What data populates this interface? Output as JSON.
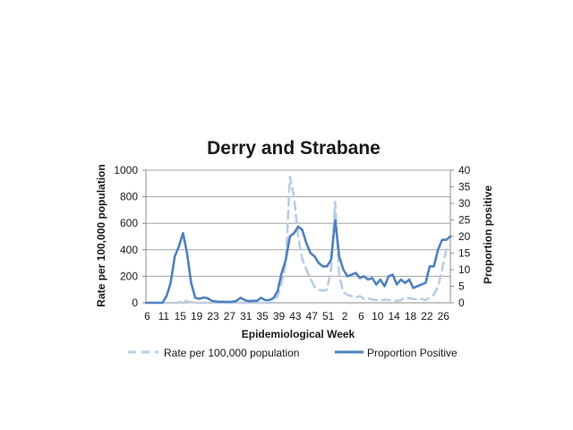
{
  "chart_data": {
    "type": "line",
    "title": "Derry and Strabane",
    "xlabel": "Epidemiological Week",
    "ylabel": "Rate per 100,000 population",
    "y2label": "Proportion positive",
    "ylim": [
      0,
      1000
    ],
    "y2lim": [
      0,
      40
    ],
    "yticks": [
      "0",
      "200",
      "400",
      "600",
      "800",
      "1000"
    ],
    "y2ticks": [
      "0",
      "5",
      "10",
      "15",
      "20",
      "25",
      "30",
      "35",
      "40"
    ],
    "grid": true,
    "legend": "bottom",
    "categories": [
      "6",
      "7",
      "8",
      "9",
      "10",
      "11",
      "12",
      "13",
      "14",
      "15",
      "16",
      "17",
      "18",
      "19",
      "20",
      "21",
      "22",
      "23",
      "24",
      "25",
      "26",
      "27",
      "28",
      "29",
      "30",
      "31",
      "32",
      "33",
      "34",
      "35",
      "36",
      "37",
      "38",
      "39",
      "40",
      "41",
      "42",
      "43",
      "44",
      "45",
      "46",
      "47",
      "48",
      "49",
      "50",
      "51",
      "52",
      "53",
      "1",
      "2",
      "3",
      "4",
      "5",
      "6",
      "7",
      "8",
      "9",
      "10",
      "11",
      "12",
      "13",
      "14",
      "15",
      "16",
      "17",
      "18",
      "19",
      "20",
      "21",
      "22",
      "23",
      "24",
      "25",
      "26",
      "27"
    ],
    "tick_labels": [
      "6",
      "11",
      "15",
      "19",
      "23",
      "27",
      "31",
      "35",
      "39",
      "43",
      "47",
      "51",
      "2",
      "6",
      "10",
      "14",
      "18",
      "22",
      "26"
    ],
    "series": [
      {
        "name": "Rate per 100,000 population",
        "axis": "left",
        "style": "dashed",
        "color": "#b9cde5",
        "values": [
          0,
          0,
          0,
          0,
          0,
          0,
          0,
          0,
          0,
          20,
          10,
          5,
          0,
          0,
          0,
          0,
          0,
          0,
          0,
          0,
          0,
          0,
          0,
          0,
          0,
          0,
          0,
          0,
          0,
          0,
          0,
          0,
          50,
          150,
          300,
          950,
          800,
          500,
          330,
          250,
          180,
          120,
          100,
          90,
          100,
          250,
          760,
          200,
          80,
          60,
          50,
          40,
          50,
          30,
          35,
          25,
          20,
          15,
          25,
          20,
          20,
          15,
          20,
          40,
          35,
          30,
          25,
          30,
          20,
          40,
          60,
          120,
          250,
          400,
          440
        ]
      },
      {
        "name": "Proportion Positive",
        "axis": "right",
        "style": "solid",
        "color": "#4f81bd",
        "values": [
          0,
          0,
          0,
          0,
          0,
          2,
          6,
          14,
          17,
          21,
          15,
          6,
          1.5,
          1.2,
          1.6,
          1.4,
          0.6,
          0.4,
          0.3,
          0.3,
          0.3,
          0.3,
          0.6,
          1.5,
          0.8,
          0.5,
          0.6,
          0.6,
          1.5,
          0.8,
          0.8,
          1.4,
          3.5,
          9,
          13,
          20,
          21,
          23,
          22,
          18,
          15,
          14,
          12,
          11,
          11,
          13,
          25,
          14,
          10,
          8,
          8.5,
          9,
          7.5,
          8,
          7,
          7.5,
          5.5,
          7,
          5,
          8,
          8.5,
          5.5,
          7,
          6,
          7,
          4.5,
          5,
          5.5,
          6,
          11,
          11,
          16,
          19,
          19,
          20
        ]
      }
    ]
  }
}
